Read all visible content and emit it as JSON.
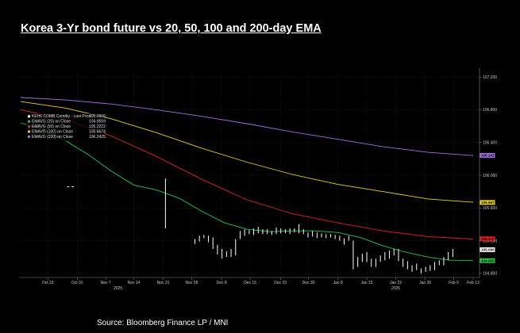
{
  "title": "Korea 3-Yr bond future vs 20, 50, 100 and 200-day EMA",
  "source": "Source: Bloomberg Finance LP / MNI",
  "chart_data": {
    "type": "line",
    "ylim": [
      104.75,
      107.25
    ],
    "y_ticks": [
      {
        "label": "104.800",
        "value": 104.8
      },
      {
        "label": "105.200",
        "value": 105.2
      },
      {
        "label": "105.600",
        "value": 105.6
      },
      {
        "label": "106.000",
        "value": 106.0
      },
      {
        "label": "106.400",
        "value": 106.4
      },
      {
        "label": "106.800",
        "value": 106.8
      },
      {
        "label": "107.200",
        "value": 107.2
      }
    ],
    "x_range": [
      0,
      100
    ],
    "x_ticks": [
      {
        "label": "Oct 23",
        "pos": 6
      },
      {
        "label": "Oct 31",
        "pos": 12.5
      },
      {
        "label": "Nov 7",
        "pos": 18.8
      },
      {
        "label": "Nov 14",
        "pos": 25
      },
      {
        "label": "Nov 21",
        "pos": 31.5
      },
      {
        "label": "Nov 28",
        "pos": 37.8
      },
      {
        "label": "Dec 8",
        "pos": 44.4
      },
      {
        "label": "Dec 15",
        "pos": 50.7
      },
      {
        "label": "Dec 23",
        "pos": 57.4
      },
      {
        "label": "Dec 30",
        "pos": 63.6
      },
      {
        "label": "Jan 8",
        "pos": 70.1
      },
      {
        "label": "Jan 15",
        "pos": 76.5
      },
      {
        "label": "Jan 22",
        "pos": 82.9
      },
      {
        "label": "Jan 30",
        "pos": 89.4
      },
      {
        "label": "Feb 6",
        "pos": 95.7
      },
      {
        "label": "Feb 13",
        "pos": 100
      }
    ],
    "x_year_labels": [
      {
        "label": "2025",
        "pos": 21.5
      },
      {
        "label": "2026",
        "pos": 82.9
      }
    ],
    "legend": [
      {
        "name": "KEH6 COMB Comdty - Last Price",
        "value": "105.0900",
        "color": "#ffffff"
      },
      {
        "name": "EMAVG (20)  on Close",
        "value": "104.9559",
        "color": "#22c84a"
      },
      {
        "name": "EMAVG (50)  on Close",
        "value": "105.2222",
        "color": "#e02020"
      },
      {
        "name": "EMAVG (100)  on Close",
        "value": "105.6674",
        "color": "#e8d020"
      },
      {
        "name": "EMAVG (200)  on Close",
        "value": "106.2425",
        "color": "#a070e0"
      }
    ],
    "end_labels": [
      {
        "text": "106.242",
        "value": 106.242,
        "color": "#a070e0"
      },
      {
        "text": "105.667",
        "value": 105.667,
        "color": "#e8d020"
      },
      {
        "text": "105.222",
        "value": 105.222,
        "color": "#e02020"
      },
      {
        "text": "105.090",
        "value": 105.09,
        "color": "#ffffff"
      },
      {
        "text": "104.956",
        "value": 104.956,
        "color": "#22c84a"
      }
    ],
    "series": [
      {
        "name": "EMAVG (200)",
        "color": "#a070e0",
        "x": [
          0,
          10,
          20,
          30,
          40,
          50,
          60,
          70,
          80,
          90,
          100
        ],
        "y": [
          106.95,
          106.92,
          106.87,
          106.8,
          106.72,
          106.63,
          106.53,
          106.44,
          106.35,
          106.28,
          106.24
        ]
      },
      {
        "name": "EMAVG (100)",
        "color": "#e8d020",
        "x": [
          0,
          10,
          20,
          30,
          40,
          50,
          60,
          70,
          80,
          90,
          100
        ],
        "y": [
          106.9,
          106.82,
          106.69,
          106.52,
          106.33,
          106.16,
          106.01,
          105.89,
          105.8,
          105.71,
          105.67
        ]
      },
      {
        "name": "EMAVG (50)",
        "color": "#e02020",
        "x": [
          0,
          10,
          20,
          30,
          40,
          50,
          60,
          70,
          80,
          90,
          100
        ],
        "y": [
          106.8,
          106.68,
          106.48,
          106.23,
          105.95,
          105.7,
          105.53,
          105.42,
          105.32,
          105.25,
          105.22
        ]
      },
      {
        "name": "EMAVG (20)",
        "color": "#22c84a",
        "x": [
          0,
          5,
          10,
          15,
          20,
          25,
          30,
          35,
          40,
          45,
          50,
          55,
          60,
          65,
          70,
          75,
          80,
          85,
          90,
          95,
          100
        ],
        "y": [
          106.64,
          106.56,
          106.42,
          106.25,
          106.05,
          105.88,
          105.82,
          105.72,
          105.56,
          105.42,
          105.34,
          105.31,
          105.32,
          105.32,
          105.3,
          105.24,
          105.14,
          105.06,
          105.0,
          104.96,
          104.96
        ]
      },
      {
        "name": "KEH6 COMB Comdty",
        "color": "#ffffff",
        "style": "ohlc",
        "bars": [
          {
            "x": 10.5,
            "h": 105.86,
            "l": 105.86
          },
          {
            "x": 11.5,
            "h": 105.86,
            "l": 105.86
          },
          {
            "x": 32.0,
            "h": 105.96,
            "l": 105.35
          },
          {
            "x": 38.5,
            "h": 105.22,
            "l": 105.16
          },
          {
            "x": 39.5,
            "h": 105.26,
            "l": 105.19
          },
          {
            "x": 40.5,
            "h": 105.27,
            "l": 105.23
          },
          {
            "x": 41.5,
            "h": 105.26,
            "l": 105.18
          },
          {
            "x": 42.5,
            "h": 105.24,
            "l": 105.1
          },
          {
            "x": 43.5,
            "h": 105.15,
            "l": 105.03
          },
          {
            "x": 44.5,
            "h": 105.1,
            "l": 104.98
          },
          {
            "x": 45.5,
            "h": 105.07,
            "l": 105.0
          },
          {
            "x": 46.5,
            "h": 105.1,
            "l": 105.0
          },
          {
            "x": 47.5,
            "h": 105.22,
            "l": 105.02
          },
          {
            "x": 48.5,
            "h": 105.32,
            "l": 105.22
          },
          {
            "x": 49.5,
            "h": 105.34,
            "l": 105.26
          },
          {
            "x": 50.5,
            "h": 105.33,
            "l": 105.28
          },
          {
            "x": 51.5,
            "h": 105.35,
            "l": 105.27
          },
          {
            "x": 52.5,
            "h": 105.37,
            "l": 105.29
          },
          {
            "x": 53.5,
            "h": 105.34,
            "l": 105.28
          },
          {
            "x": 54.5,
            "h": 105.34,
            "l": 105.28
          },
          {
            "x": 55.5,
            "h": 105.32,
            "l": 105.27
          },
          {
            "x": 56.5,
            "h": 105.36,
            "l": 105.28
          },
          {
            "x": 57.5,
            "h": 105.35,
            "l": 105.29
          },
          {
            "x": 58.5,
            "h": 105.34,
            "l": 105.29
          },
          {
            "x": 59.5,
            "h": 105.35,
            "l": 105.28
          },
          {
            "x": 60.5,
            "h": 105.35,
            "l": 105.3
          },
          {
            "x": 61.5,
            "h": 105.4,
            "l": 105.29
          },
          {
            "x": 62.5,
            "h": 105.34,
            "l": 105.28
          },
          {
            "x": 63.5,
            "h": 105.3,
            "l": 105.24
          },
          {
            "x": 64.5,
            "h": 105.32,
            "l": 105.25
          },
          {
            "x": 65.5,
            "h": 105.3,
            "l": 105.23
          },
          {
            "x": 66.5,
            "h": 105.29,
            "l": 105.24
          },
          {
            "x": 67.5,
            "h": 105.28,
            "l": 105.23
          },
          {
            "x": 68.5,
            "h": 105.28,
            "l": 105.24
          },
          {
            "x": 69.5,
            "h": 105.27,
            "l": 105.22
          },
          {
            "x": 70.5,
            "h": 105.26,
            "l": 105.2
          },
          {
            "x": 71.5,
            "h": 105.23,
            "l": 105.15
          },
          {
            "x": 72.5,
            "h": 105.26,
            "l": 105.2
          },
          {
            "x": 73.5,
            "h": 105.2,
            "l": 104.85
          },
          {
            "x": 74.5,
            "h": 105.0,
            "l": 104.88
          },
          {
            "x": 75.5,
            "h": 105.04,
            "l": 104.94
          },
          {
            "x": 76.5,
            "h": 105.06,
            "l": 104.94
          },
          {
            "x": 77.5,
            "h": 104.98,
            "l": 104.88
          },
          {
            "x": 78.5,
            "h": 104.98,
            "l": 104.88
          },
          {
            "x": 79.5,
            "h": 105.02,
            "l": 104.94
          },
          {
            "x": 80.5,
            "h": 105.06,
            "l": 104.96
          },
          {
            "x": 81.5,
            "h": 105.08,
            "l": 104.98
          },
          {
            "x": 82.5,
            "h": 105.1,
            "l": 105.02
          },
          {
            "x": 83.5,
            "h": 105.1,
            "l": 104.95
          },
          {
            "x": 84.5,
            "h": 104.98,
            "l": 104.88
          },
          {
            "x": 85.5,
            "h": 104.95,
            "l": 104.85
          },
          {
            "x": 86.5,
            "h": 104.9,
            "l": 104.82
          },
          {
            "x": 87.5,
            "h": 104.92,
            "l": 104.84
          },
          {
            "x": 88.5,
            "h": 104.86,
            "l": 104.8
          },
          {
            "x": 89.5,
            "h": 104.88,
            "l": 104.82
          },
          {
            "x": 90.5,
            "h": 104.9,
            "l": 104.83
          },
          {
            "x": 91.5,
            "h": 104.94,
            "l": 104.84
          },
          {
            "x": 92.5,
            "h": 104.96,
            "l": 104.9
          },
          {
            "x": 93.5,
            "h": 105.0,
            "l": 104.9
          },
          {
            "x": 94.5,
            "h": 105.06,
            "l": 104.96
          },
          {
            "x": 95.5,
            "h": 105.1,
            "l": 105.0
          }
        ]
      }
    ]
  }
}
